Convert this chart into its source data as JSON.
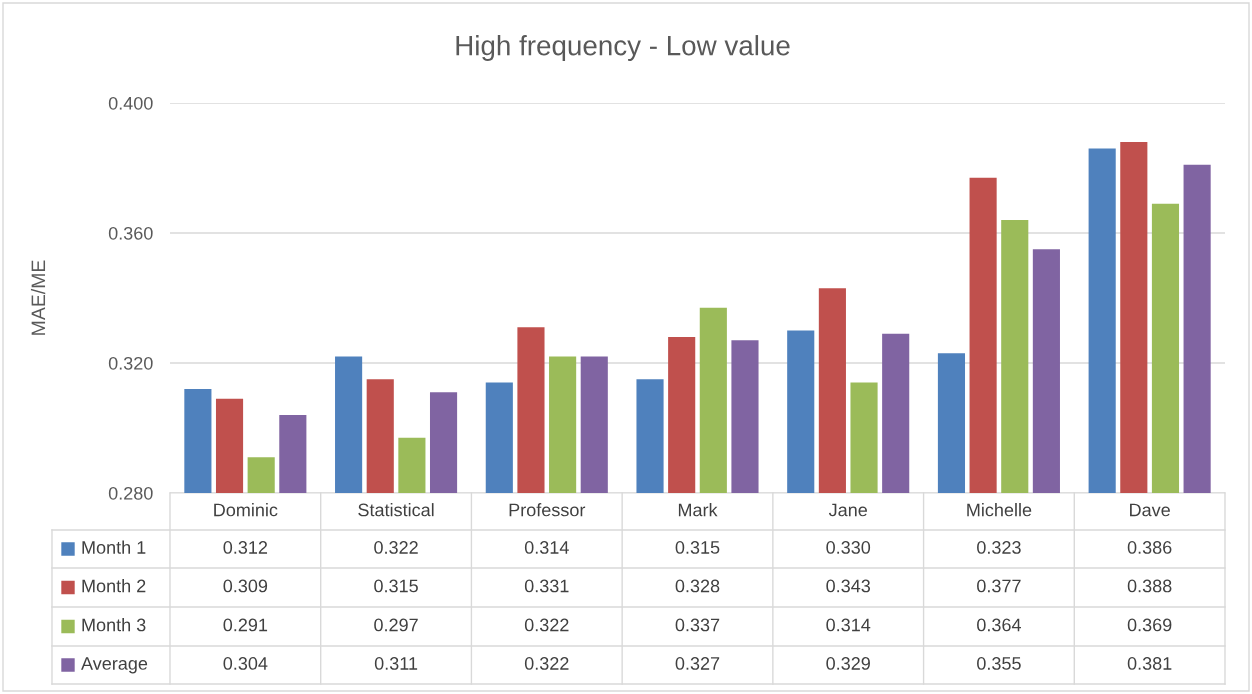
{
  "chart_data": {
    "type": "bar",
    "title": "High frequency - Low value",
    "ylabel": "MAE/ME",
    "categories": [
      "Dominic",
      "Statistical",
      "Professor",
      "Mark",
      "Jane",
      "Michelle",
      "Dave"
    ],
    "series": [
      {
        "name": "Month 1",
        "color": "#4f81bd",
        "values": [
          0.312,
          0.322,
          0.314,
          0.315,
          0.33,
          0.323,
          0.386
        ],
        "value_labels": [
          "0.312",
          "0.322",
          "0.314",
          "0.315",
          "0.330",
          "0.323",
          "0.386"
        ]
      },
      {
        "name": "Month 2",
        "color": "#c0504d",
        "values": [
          0.309,
          0.315,
          0.331,
          0.328,
          0.343,
          0.377,
          0.388
        ],
        "value_labels": [
          "0.309",
          "0.315",
          "0.331",
          "0.328",
          "0.343",
          "0.377",
          "0.388"
        ]
      },
      {
        "name": "Month 3",
        "color": "#9bbb59",
        "values": [
          0.291,
          0.297,
          0.322,
          0.337,
          0.314,
          0.364,
          0.369
        ],
        "value_labels": [
          "0.291",
          "0.297",
          "0.322",
          "0.337",
          "0.314",
          "0.364",
          "0.369"
        ]
      },
      {
        "name": "Average",
        "color": "#8064a2",
        "values": [
          0.304,
          0.311,
          0.322,
          0.327,
          0.329,
          0.355,
          0.381
        ],
        "value_labels": [
          "0.304",
          "0.311",
          "0.322",
          "0.327",
          "0.329",
          "0.355",
          "0.381"
        ]
      }
    ],
    "ylim": [
      0.28,
      0.4
    ],
    "yticks": [
      {
        "value": 0.28,
        "label": "0.280"
      },
      {
        "value": 0.32,
        "label": "0.320"
      },
      {
        "value": 0.36,
        "label": "0.360"
      },
      {
        "value": 0.4,
        "label": "0.400"
      }
    ],
    "grid": "y",
    "legend": "bottom"
  }
}
